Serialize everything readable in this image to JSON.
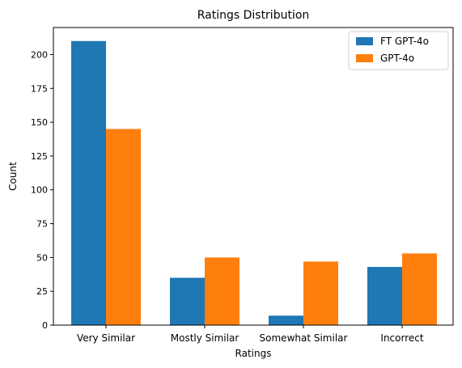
{
  "chart_data": {
    "type": "bar",
    "title": "Ratings Distribution",
    "xlabel": "Ratings",
    "ylabel": "Count",
    "categories": [
      "Very Similar",
      "Mostly Similar",
      "Somewhat Similar",
      "Incorrect"
    ],
    "series": [
      {
        "name": "FT GPT-4o",
        "values": [
          210,
          35,
          7,
          43
        ],
        "color": "#1f77b4"
      },
      {
        "name": "GPT-4o",
        "values": [
          145,
          50,
          47,
          53
        ],
        "color": "#ff7f0e"
      }
    ],
    "ylim": [
      0,
      220
    ],
    "yticks": [
      0,
      25,
      50,
      75,
      100,
      125,
      150,
      175,
      200
    ],
    "grid": false,
    "legend_position": "top-right"
  }
}
